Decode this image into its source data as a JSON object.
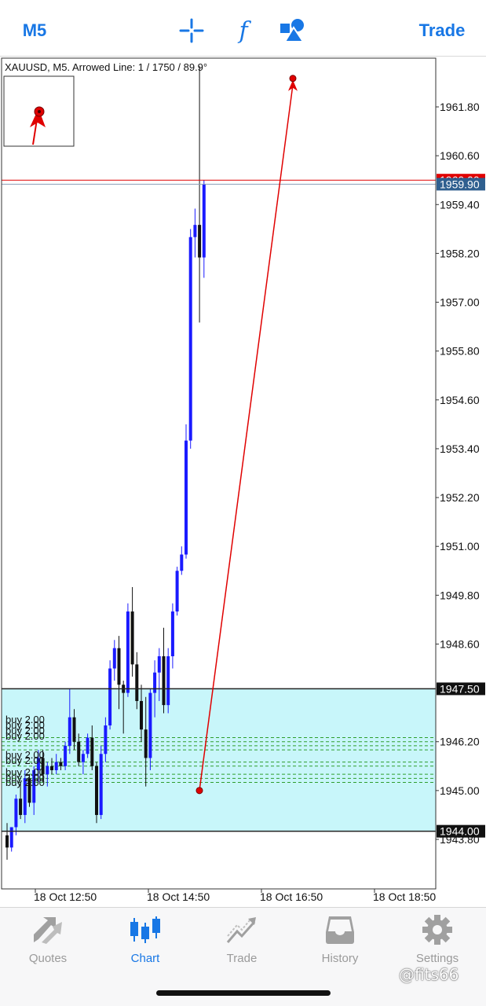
{
  "toolbar": {
    "timeframe": "M5",
    "indicators_glyph": "f",
    "trade": "Trade",
    "crosshair_icon": "crosshair-icon",
    "objects_icon": "objects-shapes-icon"
  },
  "chart": {
    "info": "XAUUSD, M5. Arrowed Line: 1 / 1750 / 89.9°",
    "price_labels": [
      "1961.80",
      "1960.60",
      "1959.40",
      "1958.20",
      "1957.00",
      "1955.80",
      "1954.60",
      "1953.40",
      "1952.20",
      "1951.00",
      "1949.80",
      "1948.60",
      "1946.20",
      "1945.00",
      "1943.80"
    ],
    "current_price": "1959.90",
    "upper_zone_price": "1947.50",
    "lower_zone_price": "1944.00",
    "red_line_label": "1960.00",
    "time_labels": [
      "18 Oct 12:50",
      "18 Oct 14:50",
      "18 Oct 16:50",
      "18 Oct 18:50"
    ],
    "order_labels": [
      "buy 2.00",
      "buy 2.00",
      "buy 2.00",
      "buy 2.00",
      "buy 2.00",
      "buy 2.00",
      "buy 2.00",
      "buy 2.00",
      "buy 2.00"
    ],
    "colors": {
      "bull": "#1a1aff",
      "bear": "#111111",
      "zone": "#c8f6fa",
      "arrow": "#e00000",
      "order_line": "#2e9e2e",
      "price_tag": "#2f5f8f"
    }
  },
  "chart_data": {
    "type": "candlestick",
    "symbol": "XAUUSD",
    "timeframe": "M5",
    "ylim": [
      1943.2,
      1963.0
    ],
    "candles": [
      [
        1943.9,
        1944.2,
        1943.3,
        1943.6
      ],
      [
        1943.6,
        1944.1,
        1943.5,
        1944.1
      ],
      [
        1944.1,
        1944.9,
        1943.9,
        1944.8
      ],
      [
        1944.8,
        1945.2,
        1944.3,
        1944.4
      ],
      [
        1944.4,
        1945.5,
        1944.2,
        1945.3
      ],
      [
        1945.3,
        1945.4,
        1944.6,
        1944.7
      ],
      [
        1944.7,
        1945.6,
        1944.4,
        1945.5
      ],
      [
        1945.5,
        1946.0,
        1945.2,
        1945.8
      ],
      [
        1945.8,
        1946.0,
        1945.2,
        1945.4
      ],
      [
        1945.4,
        1945.7,
        1945.1,
        1945.6
      ],
      [
        1945.6,
        1945.8,
        1945.4,
        1945.5
      ],
      [
        1945.5,
        1945.9,
        1945.4,
        1945.7
      ],
      [
        1945.7,
        1945.8,
        1945.5,
        1945.6
      ],
      [
        1945.6,
        1946.2,
        1945.5,
        1946.1
      ],
      [
        1946.1,
        1947.5,
        1945.9,
        1946.8
      ],
      [
        1946.8,
        1947.0,
        1946.0,
        1946.2
      ],
      [
        1946.2,
        1946.4,
        1945.6,
        1945.7
      ],
      [
        1945.7,
        1946.0,
        1945.4,
        1945.9
      ],
      [
        1945.9,
        1946.4,
        1945.8,
        1946.3
      ],
      [
        1946.3,
        1946.6,
        1945.5,
        1945.6
      ],
      [
        1945.6,
        1945.7,
        1944.2,
        1944.4
      ],
      [
        1944.4,
        1946.1,
        1944.3,
        1945.9
      ],
      [
        1945.9,
        1946.8,
        1945.7,
        1946.6
      ],
      [
        1946.6,
        1948.2,
        1946.5,
        1948.0
      ],
      [
        1948.0,
        1948.7,
        1947.7,
        1948.5
      ],
      [
        1948.5,
        1948.8,
        1947.0,
        1947.6
      ],
      [
        1947.6,
        1947.7,
        1946.4,
        1947.4
      ],
      [
        1947.4,
        1949.6,
        1947.3,
        1949.4
      ],
      [
        1949.4,
        1950.0,
        1947.8,
        1948.1
      ],
      [
        1948.1,
        1948.4,
        1947.0,
        1947.2
      ],
      [
        1947.2,
        1947.6,
        1946.2,
        1946.5
      ],
      [
        1946.5,
        1947.3,
        1945.1,
        1945.8
      ],
      [
        1945.8,
        1947.5,
        1945.5,
        1947.4
      ],
      [
        1947.4,
        1948.2,
        1946.8,
        1947.9
      ],
      [
        1947.9,
        1948.5,
        1947.2,
        1948.3
      ],
      [
        1948.3,
        1949.0,
        1946.9,
        1947.1
      ],
      [
        1947.1,
        1948.5,
        1946.9,
        1948.3
      ],
      [
        1948.3,
        1949.6,
        1948.0,
        1949.4
      ],
      [
        1949.4,
        1950.5,
        1949.3,
        1950.4
      ],
      [
        1950.4,
        1951.0,
        1950.3,
        1950.8
      ],
      [
        1950.8,
        1954.0,
        1950.7,
        1953.6
      ],
      [
        1953.6,
        1958.8,
        1953.4,
        1958.6
      ],
      [
        1958.6,
        1959.3,
        1958.1,
        1958.9
      ],
      [
        1958.9,
        1962.8,
        1956.5,
        1958.1
      ],
      [
        1958.1,
        1960.0,
        1957.6,
        1959.9
      ]
    ],
    "horizontal_levels": [
      1960.0,
      1959.9,
      1947.5,
      1944.0
    ],
    "zone": [
      1944.0,
      1947.5
    ],
    "order_levels": [
      1946.3,
      1946.2,
      1946.1,
      1946.0,
      1945.7,
      1945.6,
      1945.4,
      1945.3,
      1945.2
    ],
    "arrowed_line": {
      "from": [
        1,
        1945.0
      ],
      "to": [
        1750,
        1962.5
      ],
      "angle": "89.9°"
    }
  },
  "tabs": [
    {
      "label": "Quotes",
      "icon": "quotes-arrows-icon",
      "active": false
    },
    {
      "label": "Chart",
      "icon": "candlestick-chart-icon",
      "active": true
    },
    {
      "label": "Trade",
      "icon": "trade-trend-icon",
      "active": false
    },
    {
      "label": "History",
      "icon": "history-inbox-icon",
      "active": false
    },
    {
      "label": "Settings",
      "icon": "settings-gear-icon",
      "active": false
    }
  ],
  "watermark": "@fits66"
}
